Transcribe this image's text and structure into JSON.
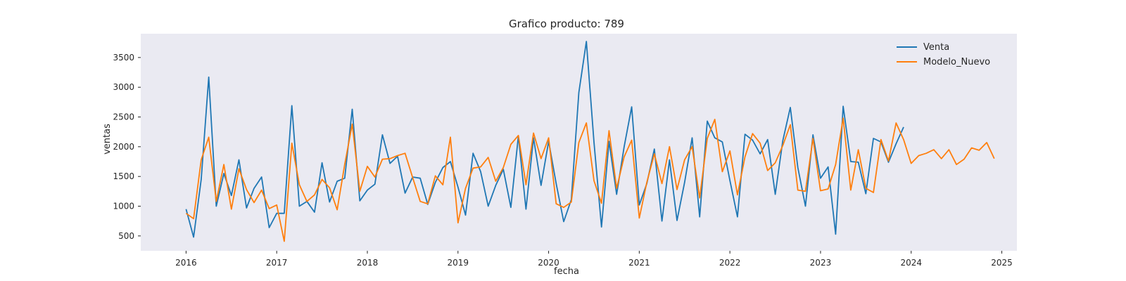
{
  "chart_data": {
    "type": "line",
    "title": "Grafico producto: 789",
    "xlabel": "fecha",
    "ylabel": "ventas",
    "xlim": [
      "2015-07-01",
      "2025-03-01"
    ],
    "ylim": [
      250,
      3900
    ],
    "x_ticks": [
      "2016",
      "2017",
      "2018",
      "2019",
      "2020",
      "2021",
      "2022",
      "2023",
      "2024",
      "2025"
    ],
    "y_ticks": [
      500,
      1000,
      1500,
      2000,
      2500,
      3000,
      3500
    ],
    "grid": false,
    "background": "#eaeaf2",
    "legend_position": "top-right",
    "series": [
      {
        "name": "Venta",
        "color": "#1f77b4",
        "start": "2016-01",
        "values": [
          950,
          480,
          1450,
          3170,
          1000,
          1550,
          1180,
          1780,
          970,
          1300,
          1490,
          640,
          880,
          880,
          2690,
          1000,
          1080,
          900,
          1730,
          1070,
          1420,
          1470,
          2630,
          1090,
          1270,
          1370,
          2200,
          1720,
          1840,
          1220,
          1490,
          1470,
          1030,
          1400,
          1650,
          1750,
          1320,
          850,
          1890,
          1580,
          1000,
          1350,
          1620,
          980,
          2180,
          950,
          2150,
          1350,
          2090,
          1380,
          740,
          1110,
          2910,
          3770,
          2080,
          650,
          2090,
          1200,
          2000,
          2670,
          1020,
          1380,
          1960,
          750,
          1780,
          760,
          1400,
          2150,
          820,
          2430,
          2150,
          2080,
          1430,
          820,
          2210,
          2110,
          1880,
          2120,
          1200,
          2100,
          2660,
          1650,
          1000,
          2200,
          1470,
          1660,
          530,
          2680,
          1750,
          1740,
          1210,
          2140,
          2080,
          1740,
          2050,
          2330
        ]
      },
      {
        "name": "Modelo_Nuevo",
        "color": "#ff7f0e",
        "start": "2016-01",
        "values": [
          880,
          790,
          1780,
          2160,
          1080,
          1700,
          950,
          1630,
          1280,
          1060,
          1270,
          960,
          1020,
          410,
          2060,
          1360,
          1080,
          1190,
          1450,
          1310,
          940,
          1700,
          2380,
          1250,
          1670,
          1490,
          1790,
          1800,
          1850,
          1890,
          1480,
          1080,
          1040,
          1510,
          1360,
          2160,
          720,
          1300,
          1640,
          1660,
          1820,
          1420,
          1650,
          2040,
          2190,
          1360,
          2230,
          1800,
          2150,
          1040,
          980,
          1070,
          2070,
          2400,
          1430,
          1050,
          2270,
          1300,
          1830,
          2110,
          800,
          1400,
          1880,
          1380,
          2000,
          1280,
          1780,
          2000,
          1140,
          2140,
          2460,
          1580,
          1930,
          1190,
          1830,
          2220,
          2060,
          1600,
          1730,
          2020,
          2370,
          1270,
          1250,
          2140,
          1260,
          1290,
          1700,
          2480,
          1270,
          1950,
          1300,
          1230,
          2120,
          1760,
          2400,
          2120,
          1720,
          1850,
          1890,
          1950,
          1800,
          1950,
          1700,
          1790,
          1980,
          1940,
          2070,
          1800
        ]
      }
    ]
  }
}
